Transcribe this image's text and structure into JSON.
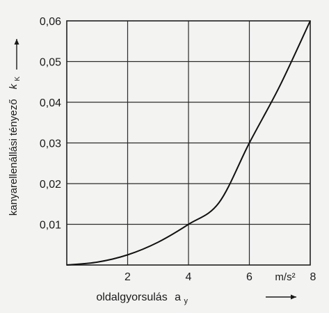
{
  "chart_data": {
    "type": "line",
    "ylabel": "kanyarellenállási tényező",
    "ylabel_symbol": "k",
    "ylabel_symbol_sub": "K",
    "xlabel": "oldalgyorsulás",
    "xlabel_symbol": "a",
    "xlabel_symbol_sub": "y",
    "x_unit": "m/s²",
    "xlim": [
      0,
      8
    ],
    "ylim": [
      0,
      0.06
    ],
    "x_ticks": [
      {
        "value": 2,
        "label": "2"
      },
      {
        "value": 4,
        "label": "4"
      },
      {
        "value": 6,
        "label": "6"
      },
      {
        "value": 8,
        "label": "8"
      }
    ],
    "y_ticks": [
      {
        "value": 0.01,
        "label": "0,01"
      },
      {
        "value": 0.02,
        "label": "0,02"
      },
      {
        "value": 0.03,
        "label": "0,03"
      },
      {
        "value": 0.04,
        "label": "0,04"
      },
      {
        "value": 0.05,
        "label": "0,05"
      },
      {
        "value": 0.06,
        "label": "0,06"
      }
    ],
    "grid": true,
    "series": [
      {
        "x": [
          0,
          1,
          2,
          3,
          4,
          5,
          6,
          7,
          8
        ],
        "y": [
          0,
          0.0007,
          0.0025,
          0.0056,
          0.01,
          0.0153,
          0.03,
          0.044,
          0.06
        ]
      }
    ],
    "colors": {
      "line": "#111111",
      "grid": "#2a2a2a",
      "background": "#f3f3f2"
    }
  }
}
